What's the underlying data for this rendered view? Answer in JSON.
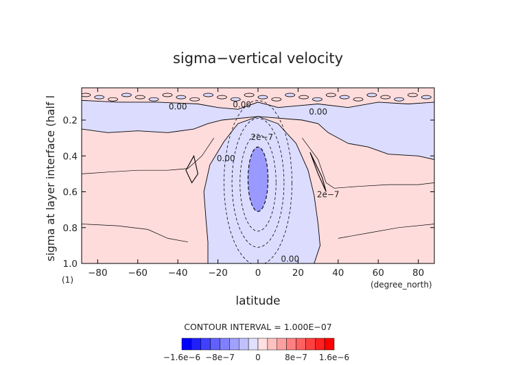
{
  "chart_data": {
    "type": "heatmap",
    "title": "sigma−vertical velocity",
    "xlabel": "latitude",
    "x_units": "(degree_north)",
    "ylabel": "sigma at layer interface (half l",
    "y_units": "(1)",
    "xlim": [
      -88,
      88
    ],
    "ylim": [
      1.0,
      0.02
    ],
    "y_inverted": true,
    "x_ticks": [
      -80,
      -60,
      -40,
      -20,
      0,
      20,
      40,
      60,
      80
    ],
    "y_ticks": [
      0.2,
      0.4,
      0.6,
      0.8,
      1.0
    ],
    "x_tick_labels": [
      "−80",
      "−60",
      "−40",
      "−20",
      "0",
      "20",
      "40",
      "60",
      "80"
    ],
    "y_tick_labels": [
      "0.2",
      "0.4",
      "0.6",
      "0.8",
      "1.0"
    ],
    "grid": false,
    "contour_interval_text": "CONTOUR INTERVAL = 1.000E−07",
    "contour_labels": [
      {
        "text": "0.00",
        "x": -40,
        "y": 0.14
      },
      {
        "text": "0.00",
        "x": -8,
        "y": 0.13
      },
      {
        "text": "0.00",
        "x": 30,
        "y": 0.17
      },
      {
        "text": "2e−7",
        "x": 2,
        "y": 0.31
      },
      {
        "text": "0.00",
        "x": -16,
        "y": 0.43
      },
      {
        "text": "2e−7",
        "x": 35,
        "y": 0.63
      },
      {
        "text": "0.00",
        "x": 16,
        "y": 0.99
      }
    ],
    "regions": [
      {
        "name": "upward-tropical-cell",
        "sign": "negative",
        "x_range": [
          -25,
          30
        ],
        "y_range": [
          0.2,
          1.0
        ]
      },
      {
        "name": "core-minimum",
        "sign": "negative",
        "x_center": 0,
        "y_center": 0.53,
        "value": -6e-07
      },
      {
        "name": "upper-band",
        "sign": "negative",
        "x_range": [
          -88,
          88
        ],
        "y_range": [
          0.1,
          0.25
        ]
      },
      {
        "name": "subsidence",
        "sign": "positive",
        "x_range": [
          -88,
          88
        ],
        "y_range": [
          0.3,
          1.0
        ]
      }
    ],
    "colorbar": {
      "min": -1.6e-06,
      "max": 1.6e-06,
      "tick_labels": [
        "−1.6e−6",
        "−8e−7",
        "0",
        "8e−7",
        "1.6e−6"
      ],
      "tick_values": [
        -1.6e-06,
        -8e-07,
        0,
        8e-07,
        1.6e-06
      ],
      "colors": [
        "#0000ff",
        "#2020ff",
        "#4040ff",
        "#6060ff",
        "#8080ff",
        "#a0a0ff",
        "#c0c0ff",
        "#e0e0ff",
        "#ffe0e0",
        "#ffc0c0",
        "#ffa0a0",
        "#ff8080",
        "#ff6060",
        "#ff4040",
        "#ff2020",
        "#ff0000"
      ]
    },
    "fill_colors": {
      "negative_light": "#dcdcff",
      "negative_strong": "#9999ff",
      "positive_light": "#ffdcdc"
    }
  }
}
